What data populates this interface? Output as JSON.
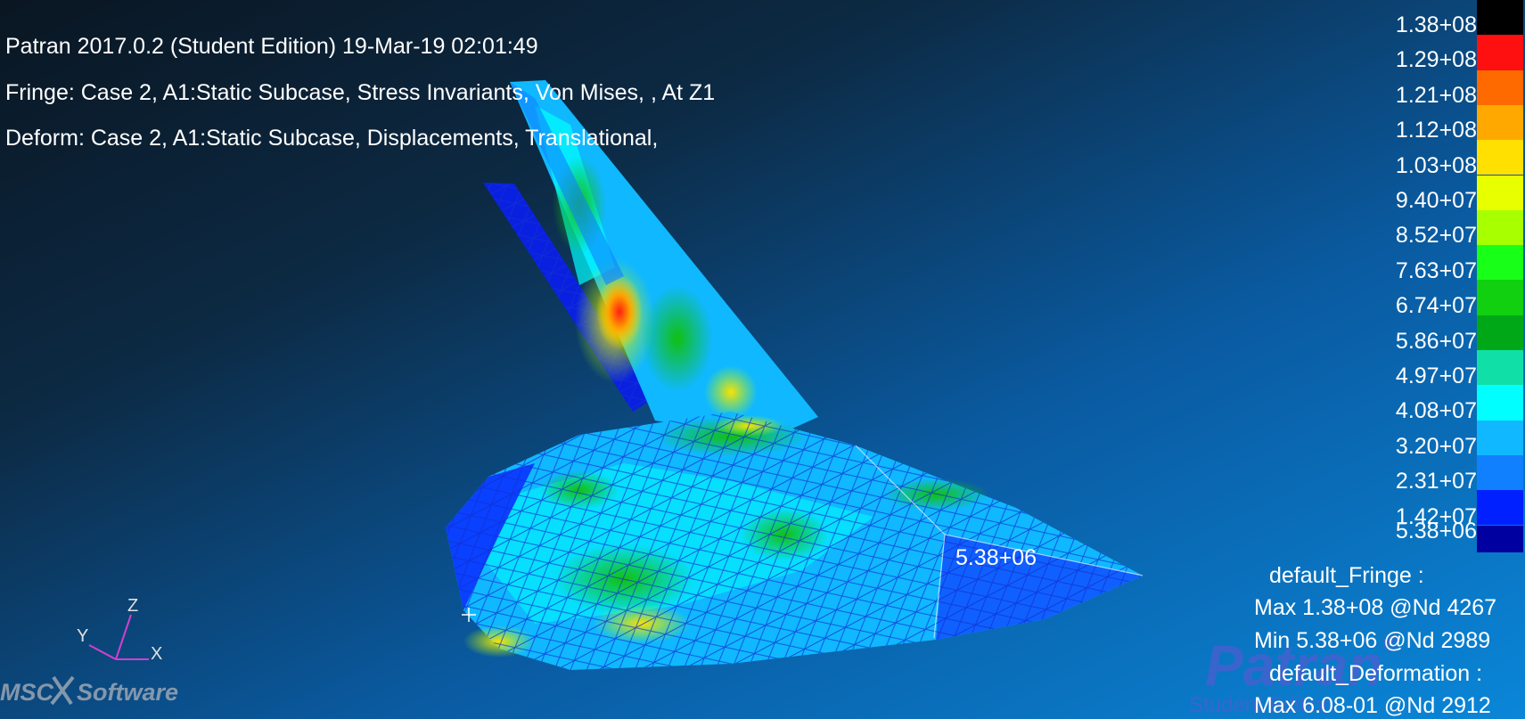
{
  "header": {
    "title_line": "Patran 2017.0.2  (Student Edition) 19-Mar-19 02:01:49",
    "fringe_line": "Fringe: Case 2, A1:Static Subcase, Stress Invariants, Von Mises, , At Z1",
    "deform_line": "Deform: Case 2, A1:Static Subcase, Displacements, Translational,"
  },
  "legend": {
    "labels": [
      "1.38+08",
      "1.29+08",
      "1.21+08",
      "1.12+08",
      "1.03+08",
      "9.40+07",
      "8.52+07",
      "7.63+07",
      "6.74+07",
      "5.86+07",
      "4.97+07",
      "4.08+07",
      "3.20+07",
      "2.31+07",
      "1.42+07",
      "5.38+06"
    ],
    "colors": [
      "#000000",
      "#ff1010",
      "#ff6a00",
      "#ffa800",
      "#ffe000",
      "#e8ff00",
      "#a8ff00",
      "#18ff18",
      "#10d010",
      "#00a818",
      "#10e0a8",
      "#00ffff",
      "#10b8ff",
      "#1080ff",
      "#0020ff",
      "#0000a0"
    ]
  },
  "model_annotation": "5.38+06",
  "stats": {
    "fringe_title": "default_Fringe :",
    "fringe_max": "Max 1.38+08 @Nd 4267",
    "fringe_min": "Min 5.38+06 @Nd 2989",
    "deform_title": "default_Deformation :",
    "deform_max": "Max 6.08-01 @Nd 2912"
  },
  "triad": {
    "x": "X",
    "y": "Y",
    "z": "Z"
  },
  "branding": {
    "msc_logo": "MSC Software",
    "patran_logo": "Patran",
    "patran_edition": "Student Edition"
  },
  "cursor_icon": "crosshair-icon"
}
